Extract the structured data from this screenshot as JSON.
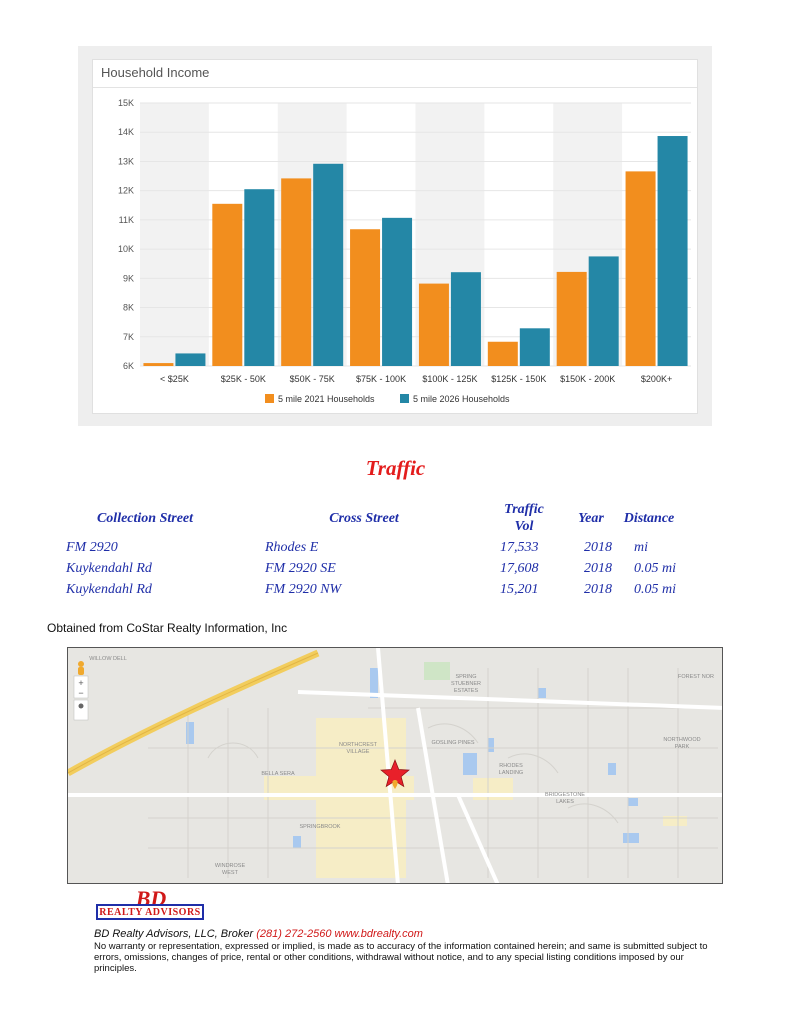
{
  "chart_data": {
    "type": "bar",
    "title": "Household Income",
    "categories": [
      "< $25K",
      "$25K - 50K",
      "$50K - 75K",
      "$75K - 100K",
      "$100K - 125K",
      "$125K - 150K",
      "$150K - 200K",
      "$200K+"
    ],
    "series": [
      {
        "name": "5 mile 2021 Households",
        "color": "#f28e1e",
        "values": [
          6100,
          11550,
          12420,
          10680,
          8820,
          6830,
          9220,
          12660
        ]
      },
      {
        "name": "5 mile 2026 Households",
        "color": "#2487a6",
        "values": [
          6430,
          12050,
          12920,
          11070,
          9210,
          7290,
          9750,
          13870
        ]
      }
    ],
    "ylim": [
      6000,
      15000
    ],
    "yticks": [
      "6K",
      "7K",
      "8K",
      "9K",
      "10K",
      "11K",
      "12K",
      "13K",
      "14K",
      "15K"
    ],
    "ytick_values": [
      6000,
      7000,
      8000,
      9000,
      10000,
      11000,
      12000,
      13000,
      14000,
      15000
    ],
    "legend_position": "bottom",
    "grid": true
  },
  "traffic": {
    "title": "Traffic",
    "headers": {
      "collection_street": "Collection Street",
      "cross_street": "Cross Street",
      "traffic_line1": "Traffic",
      "traffic_line2": "Vol",
      "year": "Year",
      "distance": "Distance"
    },
    "rows": [
      {
        "collection_street": "FM 2920",
        "cross_street": "Rhodes E",
        "traffic_vol": "17,533",
        "year": "2018",
        "distance": "mi"
      },
      {
        "collection_street": "Kuykendahl Rd",
        "cross_street": "FM 2920 SE",
        "traffic_vol": "17,608",
        "year": "2018",
        "distance": "0.05 mi"
      },
      {
        "collection_street": "Kuykendahl Rd",
        "cross_street": "FM 2920 NW",
        "traffic_vol": "15,201",
        "year": "2018",
        "distance": "0.05 mi"
      }
    ]
  },
  "source_note": "Obtained from CoStar Realty Information, Inc",
  "map": {
    "labels": {
      "willow_dell": "WILLOW DELL",
      "northcrest_village_1": "NORTHCREST",
      "northcrest_village_2": "VILLAGE",
      "gosling_pines": "GOSLING PINES",
      "spring_stuebner_1": "SPRING",
      "spring_stuebner_2": "STUEBNER",
      "spring_stuebner_3": "ESTATES",
      "forest_nor": "FOREST NOR",
      "northwood_park_1": "NORTHWOOD",
      "northwood_park_2": "PARK",
      "rhodes_landing_1": "RHODES",
      "rhodes_landing_2": "LANDING",
      "bella_sera": "BELLA SERA",
      "bridgestone_lakes_1": "BRIDGESTONE",
      "bridgestone_lakes_2": "LAKES",
      "springbrook": "SPRINGBROOK",
      "windrose_west_1": "WINDROSE",
      "windrose_west_2": "WEST"
    },
    "zoom_in": "+",
    "zoom_out": "−",
    "marker_color": "#e8202a"
  },
  "footer": {
    "logo_bd": "BD",
    "logo_sub": "REALTY ADVISORS",
    "broker": "BD Realty Advisors, LLC, Broker",
    "phone": "(281) 272-2560",
    "website": "www.bdrealty.com",
    "disclaimer": "No warranty or representation, expressed or implied, is made as to accuracy of the information contained herein; and same is submitted subject to errors, omissions, changes of price, rental or other conditions, withdrawal without notice, and to any special listing conditions imposed by our principles."
  }
}
